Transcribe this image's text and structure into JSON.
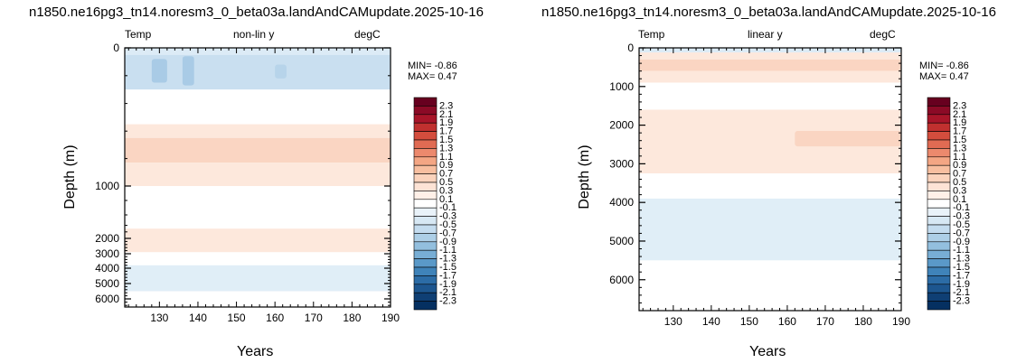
{
  "chart_data": [
    {
      "type": "contour",
      "title": "n1850.ne16pg3_tn14.noresm3_0_beta03a.landAndCAMupdate.2025-10-16",
      "left_label": "Temp",
      "center_label": "non-lin y",
      "right_label": "degC",
      "stats": {
        "min_text": "MIN= -0.86",
        "max_text": "MAX=  0.47"
      },
      "xlabel": "Years",
      "ylabel": "Depth (m)",
      "xlim": [
        121,
        190
      ],
      "ylim": [
        0,
        6500
      ],
      "yscale": "non-linear",
      "xticks": [
        "130",
        "140",
        "150",
        "160",
        "170",
        "180",
        "190"
      ],
      "yticks": [
        "0",
        "1000",
        "2000",
        "3000",
        "4000",
        "5000",
        "6000"
      ],
      "regions": [
        {
          "depth": [
            0,
            50
          ],
          "color": "#dcebf6"
        },
        {
          "depth": [
            50,
            300
          ],
          "color": "#c9dff0"
        },
        {
          "depth": [
            300,
            550
          ],
          "color": "#ffffff"
        },
        {
          "depth": [
            550,
            650
          ],
          "color": "#fde8dc"
        },
        {
          "depth": [
            650,
            830
          ],
          "color": "#fad5c2"
        },
        {
          "depth": [
            830,
            1000
          ],
          "color": "#fde8dc"
        },
        {
          "depth": [
            1000,
            1700
          ],
          "color": "#ffffff"
        },
        {
          "depth": [
            1700,
            2900
          ],
          "color": "#fde8dc"
        },
        {
          "depth": [
            2900,
            3800
          ],
          "color": "#ffffff"
        },
        {
          "depth": [
            3800,
            5500
          ],
          "color": "#e0eef7"
        },
        {
          "depth": [
            5500,
            6500
          ],
          "color": "#ffffff"
        }
      ],
      "blobs": [
        {
          "x": [
            128,
            132
          ],
          "depth": [
            80,
            250
          ],
          "color": "#a9cbe6"
        },
        {
          "x": [
            136,
            139
          ],
          "depth": [
            60,
            270
          ],
          "color": "#a9cbe6"
        },
        {
          "x": [
            160,
            163
          ],
          "depth": [
            120,
            220
          ],
          "color": "#b7d4ea"
        }
      ]
    },
    {
      "type": "contour",
      "title": "n1850.ne16pg3_tn14.noresm3_0_beta03a.landAndCAMupdate.2025-10-16",
      "left_label": "Temp",
      "center_label": "linear y",
      "right_label": "degC",
      "stats": {
        "min_text": "MIN= -0.86",
        "max_text": "MAX=  0.47"
      },
      "xlabel": "Years",
      "ylabel": "Depth (m)",
      "xlim": [
        121,
        190
      ],
      "ylim": [
        0,
        6800
      ],
      "yscale": "linear",
      "xticks": [
        "130",
        "140",
        "150",
        "160",
        "170",
        "180",
        "190"
      ],
      "yticks": [
        "0",
        "1000",
        "2000",
        "3000",
        "4000",
        "5000",
        "6000"
      ],
      "regions": [
        {
          "depth": [
            0,
            120
          ],
          "color": "#dcebf6"
        },
        {
          "depth": [
            120,
            300
          ],
          "color": "#fde8dc"
        },
        {
          "depth": [
            300,
            600
          ],
          "color": "#fad5c2"
        },
        {
          "depth": [
            600,
            900
          ],
          "color": "#fde8dc"
        },
        {
          "depth": [
            900,
            1600
          ],
          "color": "#ffffff"
        },
        {
          "depth": [
            1600,
            3250
          ],
          "color": "#fde8dc"
        },
        {
          "depth": [
            3250,
            3900
          ],
          "color": "#ffffff"
        },
        {
          "depth": [
            3900,
            5500
          ],
          "color": "#e0eef7"
        },
        {
          "depth": [
            5500,
            6800
          ],
          "color": "#ffffff"
        }
      ],
      "blobs": [
        {
          "x": [
            162,
            190
          ],
          "depth": [
            2150,
            2550
          ],
          "color": "#fad5c2"
        }
      ]
    }
  ],
  "colorbar": {
    "labels": [
      "2.3",
      "2.1",
      "1.9",
      "1.7",
      "1.5",
      "1.3",
      "1.1",
      "0.9",
      "0.7",
      "0.5",
      "0.3",
      "0.1",
      "-0.1",
      "-0.3",
      "-0.5",
      "-0.7",
      "-0.9",
      "-1.1",
      "-1.3",
      "-1.5",
      "-1.7",
      "-1.9",
      "-2.1",
      "-2.3"
    ],
    "colors": [
      "#67001f",
      "#8b0a26",
      "#a81529",
      "#c0302f",
      "#d44d3d",
      "#e06b53",
      "#ec896d",
      "#f4a684",
      "#f8bfa0",
      "#fbd3bc",
      "#fde3d5",
      "#fff0e8",
      "#ffffff",
      "#e9f2f9",
      "#d7e8f4",
      "#c4dcef",
      "#adcfe7",
      "#93bfde",
      "#78aed5",
      "#5a99c8",
      "#3f83b9",
      "#2c6ca6",
      "#1d568f",
      "#0f3f74",
      "#053061"
    ]
  }
}
